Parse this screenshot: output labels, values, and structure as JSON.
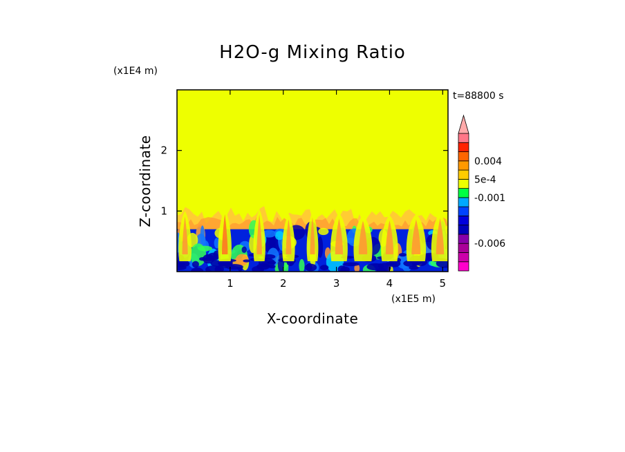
{
  "chart_data": {
    "type": "heatmap",
    "title": "H2O-g Mixing Ratio",
    "xlabel": "X-coordinate",
    "ylabel": "Z-coordinate",
    "x_unit": "(x1E5 m)",
    "y_unit": "(x1E4 m)",
    "time_label": "t=88800 s",
    "xlim": [
      0,
      5.1
    ],
    "ylim": [
      0,
      3.0
    ],
    "x_ticks": [
      {
        "value": 1,
        "label": "1"
      },
      {
        "value": 2,
        "label": "2"
      },
      {
        "value": 3,
        "label": "3"
      },
      {
        "value": 4,
        "label": "4"
      },
      {
        "value": 5,
        "label": "5"
      }
    ],
    "y_ticks": [
      {
        "value": 1,
        "label": "1"
      },
      {
        "value": 2,
        "label": "2"
      }
    ],
    "background_value_color": "#eeff00",
    "boundary_layer_top": 0.7,
    "moist_layer_top": 1.05,
    "colorbar": {
      "extend_max": true,
      "levels": [
        {
          "color": "#ff00cc"
        },
        {
          "color": "#cc00aa"
        },
        {
          "color": "#aa0099"
        },
        {
          "color": "#8800aa"
        },
        {
          "color": "#0000bb"
        },
        {
          "color": "#0000dd"
        },
        {
          "color": "#0044ff"
        },
        {
          "color": "#00aaff"
        },
        {
          "color": "#00ff44"
        },
        {
          "color": "#eeff00"
        },
        {
          "color": "#ffcc00"
        },
        {
          "color": "#ff9900"
        },
        {
          "color": "#ff6600"
        },
        {
          "color": "#ff2200"
        },
        {
          "color": "#ff7788"
        }
      ],
      "extend_color": "#ffaaaa",
      "labels": [
        {
          "text": "0.004",
          "level_index": 12
        },
        {
          "text": "5e-4",
          "level_index": 10
        },
        {
          "text": "-0.001",
          "level_index": 8
        },
        {
          "text": "-0.006",
          "level_index": 3
        }
      ]
    },
    "fill_colors": {
      "yellow": "#eeff00",
      "orange_light": "#ffcc33",
      "orange": "#ff9933",
      "orange_dark": "#ff7722",
      "green": "#33ff55",
      "cyan": "#00ccff",
      "lightblue": "#1177ff",
      "blue": "#0022dd",
      "navy": "#0000aa"
    },
    "plumes_x": [
      0.15,
      0.9,
      1.55,
      2.1,
      2.55,
      3.05,
      3.5,
      4.0,
      4.5,
      4.95
    ]
  }
}
